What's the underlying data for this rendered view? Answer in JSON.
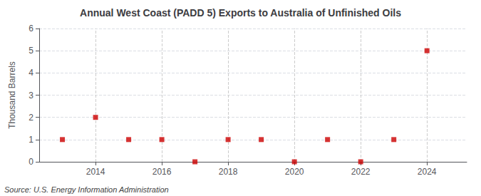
{
  "chart_data": {
    "type": "scatter",
    "title": "Annual West Coast (PADD 5) Exports to Australia of Unfinished Oils",
    "ylabel": "Thousand Barrels",
    "annotations": [
      "Source: U.S. Energy Information Administration"
    ],
    "x": [
      2013,
      2014,
      2015,
      2016,
      2017,
      2018,
      2019,
      2020,
      2021,
      2022,
      2023,
      2024
    ],
    "values": [
      1,
      2,
      1,
      1,
      0,
      1,
      1,
      0,
      1,
      0,
      1,
      5
    ],
    "color": "#cc0000",
    "marker": "square",
    "xlim": [
      2012.3,
      2025.2
    ],
    "xticks": [
      2014,
      2016,
      2018,
      2020,
      2022,
      2024
    ],
    "ylim": [
      0,
      6
    ],
    "yticks": [
      0,
      1,
      2,
      3,
      4,
      5,
      6
    ],
    "grid": true
  }
}
